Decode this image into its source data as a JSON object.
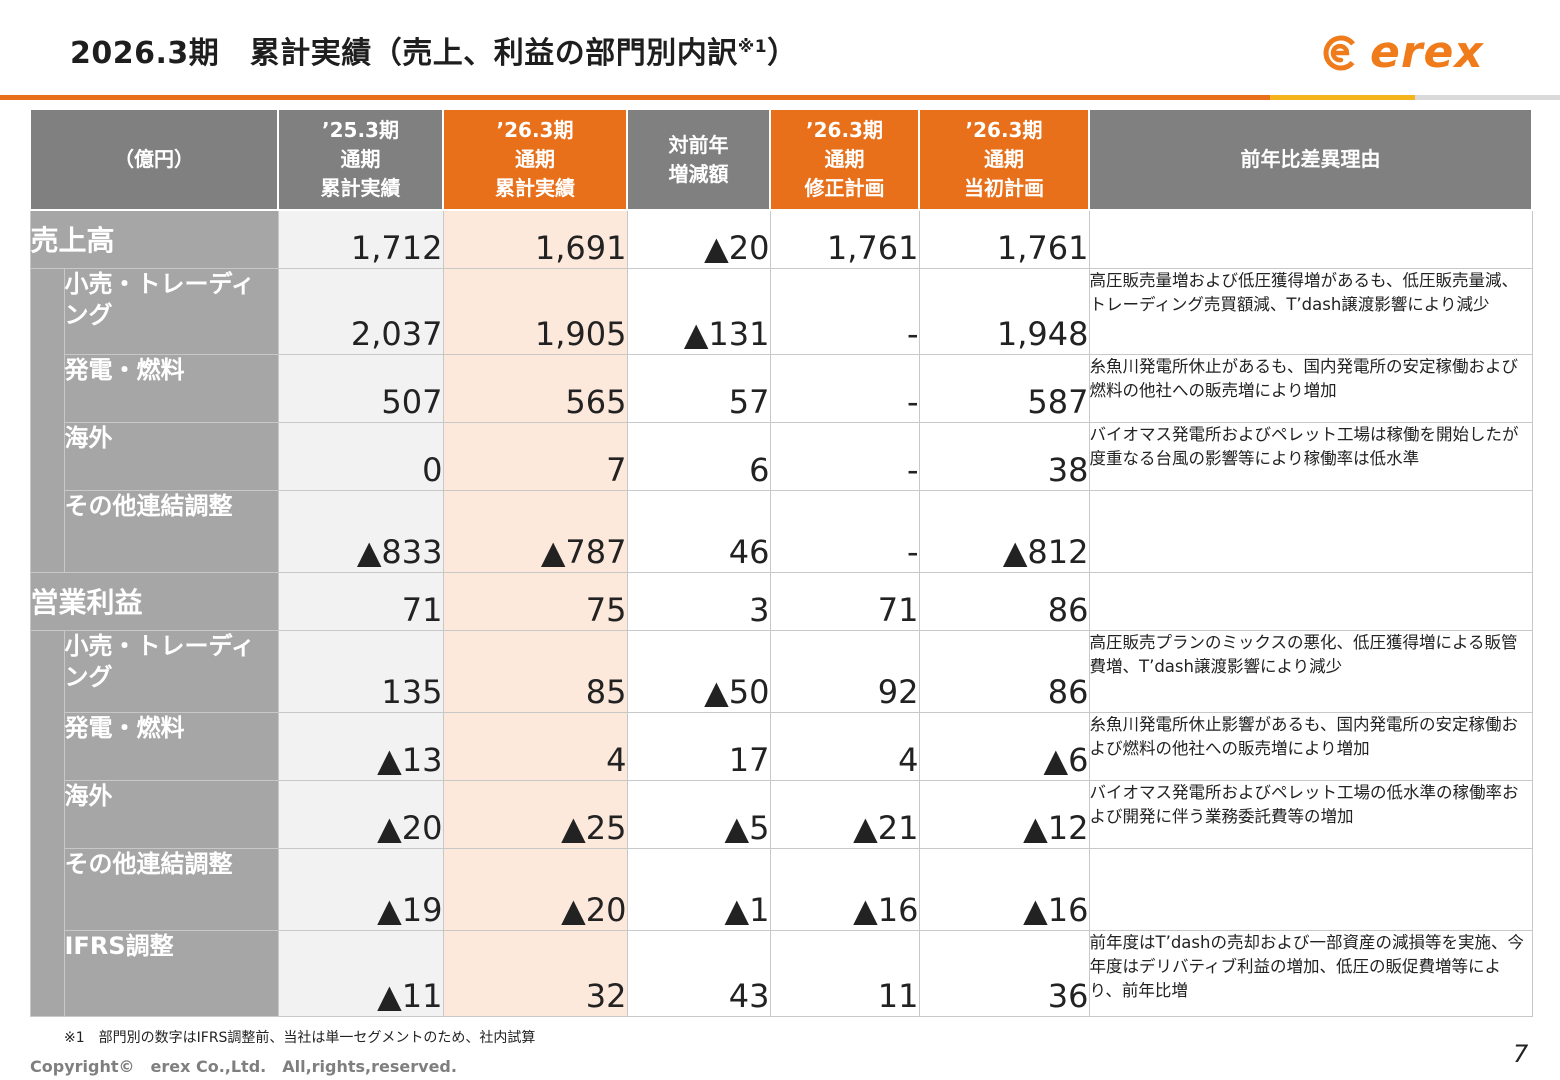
{
  "title": "2026.3期　累計実績（売上、利益の部門別内訳",
  "title_sup": "※1",
  "title_close": "）",
  "logo": {
    "text": "erex",
    "icon": "erex-swirl-icon",
    "color": "#ef7b1a"
  },
  "accent_colors": {
    "orange": "#e8701a",
    "yellow": "#f4b31b",
    "gray": "#808080"
  },
  "header": {
    "unit": "（億円）",
    "col1": [
      "’25.3期",
      "通期",
      "累計実績"
    ],
    "col2": [
      "’26.3期",
      "通期",
      "累計実績"
    ],
    "col3": [
      "対前年",
      "増減額"
    ],
    "col4": [
      "’26.3期",
      "通期",
      "修正計画"
    ],
    "col5": [
      "’26.3期",
      "通期",
      "当初計画"
    ],
    "reason": "前年比差異理由"
  },
  "sales": {
    "label": "売上高",
    "values": [
      "1,712",
      "1,691",
      "▲20",
      "1,761",
      "1,761"
    ],
    "reason": "",
    "rows": [
      {
        "label": "小売・トレーディング",
        "values": [
          "2,037",
          "1,905",
          "▲131",
          "-",
          "1,948"
        ],
        "reason": "高圧販売量増および低圧獲得増があるも、低圧販売量減、トレーディング売買額減、T’dash譲渡影響により減少"
      },
      {
        "label": "発電・燃料",
        "values": [
          "507",
          "565",
          "57",
          "-",
          "587"
        ],
        "reason": "糸魚川発電所休止があるも、国内発電所の安定稼働および燃料の他社への販売増により増加"
      },
      {
        "label": "海外",
        "values": [
          "0",
          "7",
          "6",
          "-",
          "38"
        ],
        "reason": "バイオマス発電所およびペレット工場は稼働を開始したが度重なる台風の影響等により稼働率は低水準"
      },
      {
        "label": "その他連結調整",
        "values": [
          "▲833",
          "▲787",
          "46",
          "-",
          "▲812"
        ],
        "reason": ""
      }
    ]
  },
  "profit": {
    "label": "営業利益",
    "values": [
      "71",
      "75",
      "3",
      "71",
      "86"
    ],
    "reason": "",
    "rows": [
      {
        "label": "小売・トレーディング",
        "values": [
          "135",
          "85",
          "▲50",
          "92",
          "86"
        ],
        "reason": "高圧販売プランのミックスの悪化、低圧獲得増による販管費増、T’dash譲渡影響により減少"
      },
      {
        "label": "発電・燃料",
        "values": [
          "▲13",
          "4",
          "17",
          "4",
          "▲6"
        ],
        "reason": "糸魚川発電所休止影響があるも、国内発電所の安定稼働および燃料の他社への販売増により増加"
      },
      {
        "label": "海外",
        "values": [
          "▲20",
          "▲25",
          "▲5",
          "▲21",
          "▲12"
        ],
        "reason": "バイオマス発電所およびペレット工場の低水準の稼働率および開発に伴う業務委託費等の増加"
      },
      {
        "label": "その他連結調整",
        "values": [
          "▲19",
          "▲20",
          "▲1",
          "▲16",
          "▲16"
        ],
        "reason": ""
      },
      {
        "label": "IFRS調整",
        "values": [
          "▲11",
          "32",
          "43",
          "11",
          "36"
        ],
        "reason": "前年度はT’dashの売却および一部資産の減損等を実施、今年度はデリバティブ利益の増加、低圧の販促費増等により、前年比増"
      }
    ]
  },
  "footnote": "※1　部門別の数字はIFRS調整前、当社は単一セグメントのため、社内試算",
  "copyright": "Copyright©　erex Co.,Ltd.　All,rights,reserved.",
  "page_number": "7"
}
